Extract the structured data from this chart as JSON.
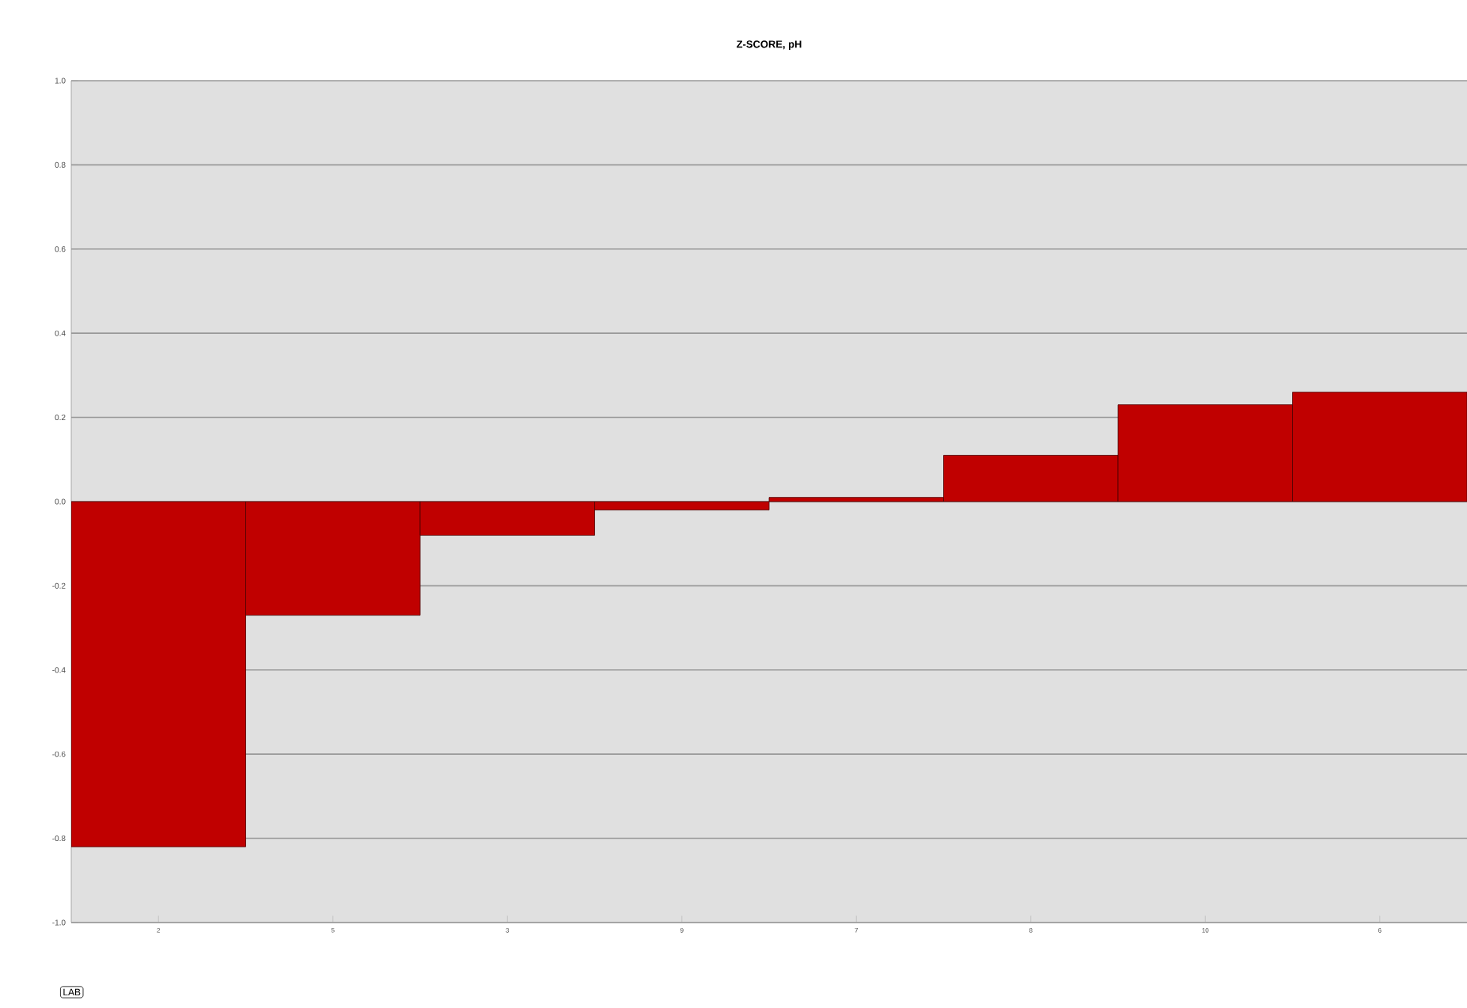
{
  "chart_data": {
    "type": "bar",
    "title": "Z-SCORE, pH",
    "categories": [
      "2",
      "5",
      "3",
      "9",
      "7",
      "8",
      "10",
      "6"
    ],
    "values": [
      -0.82,
      -0.27,
      -0.08,
      -0.02,
      0.01,
      0.11,
      0.23,
      0.26
    ],
    "color": "#c00000",
    "ylim": [
      -1.0,
      1.0
    ],
    "yticks": [
      {
        "value": -1.0,
        "label": "-1.0"
      },
      {
        "value": -0.8,
        "label": "-0.8"
      },
      {
        "value": -0.6,
        "label": "-0.6"
      },
      {
        "value": -0.4,
        "label": "-0.4"
      },
      {
        "value": -0.2,
        "label": "-0.2"
      },
      {
        "value": 0.0,
        "label": "0.0"
      },
      {
        "value": 0.2,
        "label": "0.2"
      },
      {
        "value": 0.4,
        "label": "0.4"
      },
      {
        "value": 0.6,
        "label": "0.6"
      },
      {
        "value": 0.8,
        "label": "0.8"
      },
      {
        "value": 1.0,
        "label": "1.0"
      }
    ],
    "grid": "y",
    "annotations": [
      "LAB"
    ]
  }
}
